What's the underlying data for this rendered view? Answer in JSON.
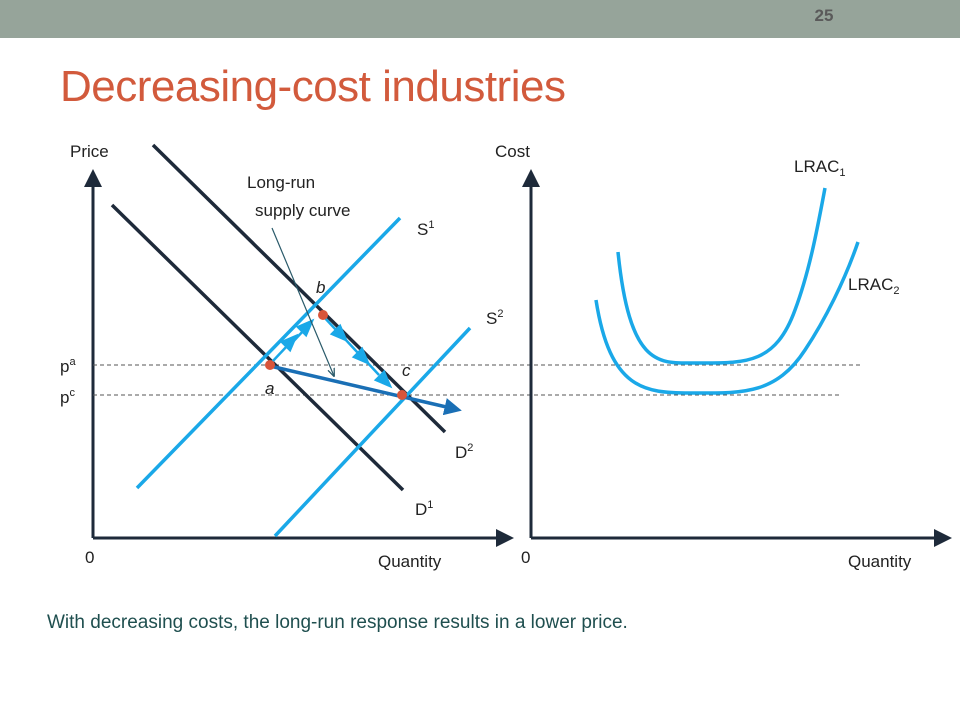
{
  "slide": {
    "number": "25",
    "title": "Decreasing-cost industries",
    "caption": "With decreasing costs, the long-run response results in a lower price."
  },
  "left_chart": {
    "y_axis_label": "Price",
    "x_axis_label": "Quantity",
    "origin": "0",
    "lr_supply_label_line1": "Long-run",
    "lr_supply_label_line2": "supply curve",
    "s1": {
      "base": "S",
      "sub": "1"
    },
    "s2": {
      "base": "S",
      "sub": "2"
    },
    "d1": {
      "base": "D",
      "sub": "1"
    },
    "d2": {
      "base": "D",
      "sub": "2"
    },
    "pa": {
      "base": "p",
      "sub": "a"
    },
    "pc": {
      "base": "p",
      "sub": "c"
    },
    "point_a": "a",
    "point_b": "b",
    "point_c": "c"
  },
  "right_chart": {
    "y_axis_label": "Cost",
    "x_axis_label": "Quantity",
    "origin": "0",
    "lrac1": {
      "base": "LRAC",
      "sub": "1"
    },
    "lrac2": {
      "base": "LRAC",
      "sub": "2"
    }
  },
  "colors": {
    "title": "#d25a3c",
    "curve_blue": "#1aa8e8",
    "demand": "#1e2a3a",
    "lr_supply": "#1a6fb5",
    "point": "#d9553a",
    "axis": "#1e2a3a",
    "topbar": "#96a49a"
  }
}
